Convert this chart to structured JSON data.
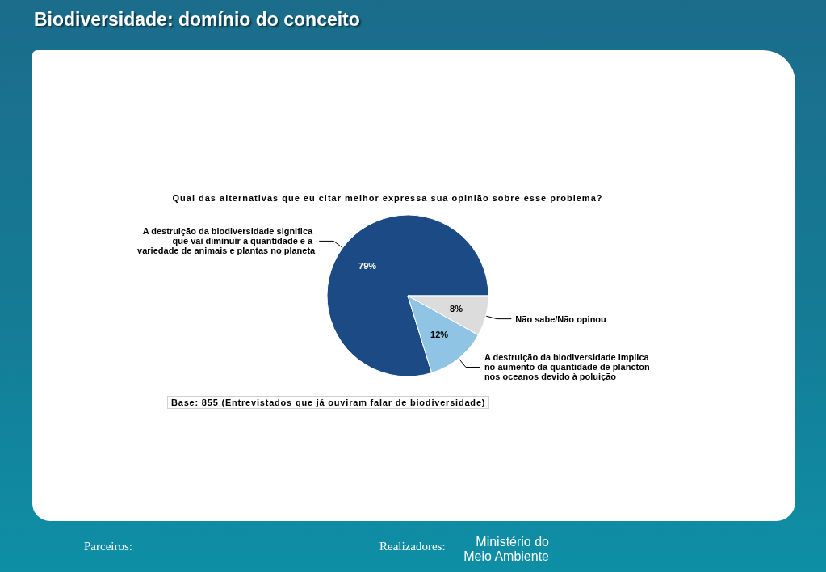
{
  "chart_data": {
    "type": "pie",
    "title": "Biodiversidade: domínio do conceito",
    "subtitle": "Qual das alternativas que eu citar melhor expressa sua opinião sobre esse problema?",
    "categories": [
      "A destruição da biodiversidade significa que vai diminuir a quantidade e a variedade de animais e plantas no planeta",
      "A destruição da biodiversidade implica no aumento da quantidade de plancton nos oceanos devido à poluição",
      "Não sabe/Não opinou"
    ],
    "values": [
      79,
      12,
      8
    ],
    "value_labels": [
      "79%",
      "12%",
      "8%"
    ],
    "colors": [
      "#1c4a85",
      "#8fc4e4",
      "#dcdcdc"
    ],
    "annotations": [
      "Base: 855 (Entrevistados que já ouviram falar de biodiversidade)",
      "Parceiros:",
      "Realizadores:",
      "Ministério do Meio Ambiente"
    ]
  }
}
